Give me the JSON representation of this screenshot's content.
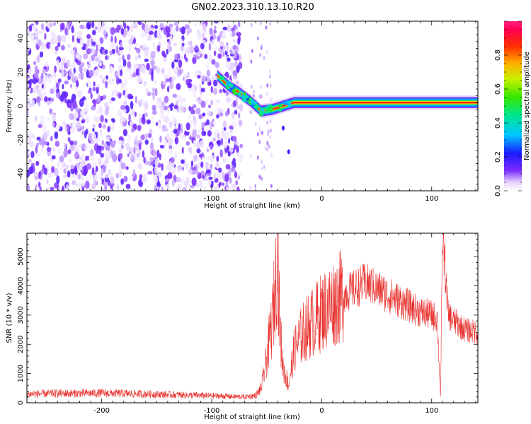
{
  "figure": {
    "title": "GN02.2023.310.13.10.R20"
  },
  "chart_data": [
    {
      "type": "heatmap",
      "xlabel": "Height of straight line (km)",
      "ylabel": "Frequency (Hz)",
      "xlim": [
        -268,
        142
      ],
      "ylim": [
        -50,
        50
      ],
      "xticks": [
        "-200",
        "-100",
        "0",
        "100"
      ],
      "yticks": [
        "40",
        "20",
        "0",
        "-20",
        "-40"
      ],
      "colorbar": {
        "label": "Normalized spectral amplitude",
        "range": [
          0,
          1
        ],
        "ticks": [
          "0.0",
          "0.2",
          "0.4",
          "0.6",
          "0.8"
        ]
      },
      "features": {
        "noise_region_x": [
          -268,
          -73
        ],
        "signal_track": [
          {
            "x": -95,
            "y": 18
          },
          {
            "x": -85,
            "y": 12
          },
          {
            "x": -75,
            "y": 8
          },
          {
            "x": -65,
            "y": 3
          },
          {
            "x": -55,
            "y": -3
          },
          {
            "x": -45,
            "y": -2
          },
          {
            "x": -35,
            "y": 0
          },
          {
            "x": -25,
            "y": 2
          },
          {
            "x": 0,
            "y": 2
          },
          {
            "x": 50,
            "y": 2
          },
          {
            "x": 100,
            "y": 2
          },
          {
            "x": 142,
            "y": 2
          }
        ]
      }
    },
    {
      "type": "line",
      "xlabel": "Height of straight line (km)",
      "ylabel": "SNR (10 * v/v)",
      "xlim": [
        -268,
        142
      ],
      "ylim": [
        0,
        5800
      ],
      "xticks": [
        "-200",
        "-100",
        "0",
        "100"
      ],
      "yticks": [
        "0",
        "1000",
        "2000",
        "3000",
        "4000",
        "5000"
      ],
      "color": "#e8312e",
      "series": [
        {
          "x": [
            -268,
            -240,
            -200,
            -160,
            -120,
            -90,
            -70,
            -60,
            -55,
            -50,
            -45,
            -42,
            -40,
            -38,
            -35,
            -30,
            -25,
            -20,
            -15,
            -10,
            -5,
            0,
            10,
            20,
            30,
            40,
            50,
            60,
            70,
            80,
            90,
            100,
            105,
            108,
            110,
            115,
            120,
            130,
            142
          ],
          "y": [
            300,
            320,
            330,
            300,
            260,
            230,
            200,
            250,
            500,
            1500,
            2800,
            4000,
            5100,
            2500,
            1200,
            600,
            1800,
            2200,
            2500,
            2700,
            2900,
            3100,
            3400,
            3700,
            3900,
            4100,
            3900,
            3700,
            3500,
            3300,
            3100,
            3000,
            2900,
            200,
            5800,
            3000,
            2800,
            2500,
            2400
          ]
        }
      ]
    }
  ]
}
